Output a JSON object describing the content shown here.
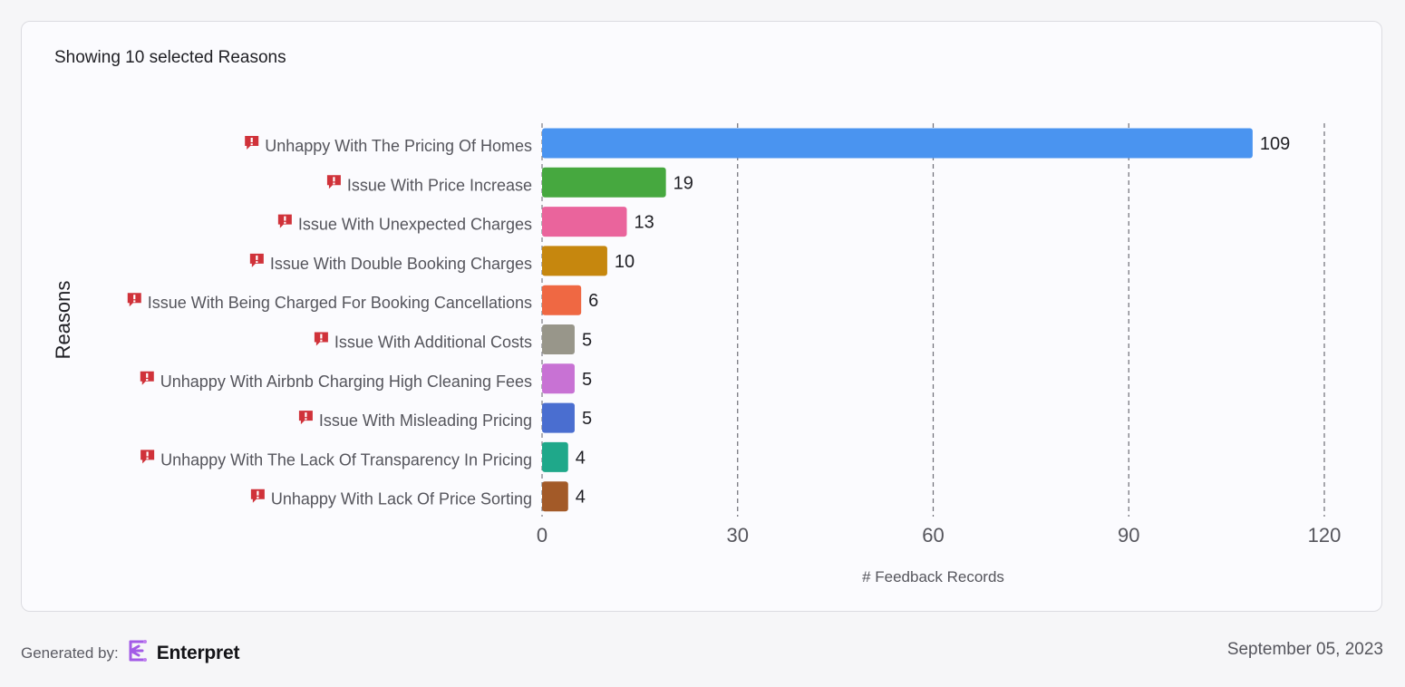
{
  "card": {
    "title": "Showing 10 selected Reasons"
  },
  "chart_data": {
    "type": "bar",
    "orientation": "horizontal",
    "ylabel": "Reasons",
    "xlabel": "# Feedback Records",
    "xlim": [
      0,
      120
    ],
    "xticks": [
      0,
      30,
      60,
      90,
      120
    ],
    "grid": "vertical-dashed",
    "categories": [
      "Unhappy With The Pricing Of Homes",
      "Issue With Price Increase",
      "Issue With Unexpected Charges",
      "Issue With Double Booking Charges",
      "Issue With Being Charged For Booking Cancellations",
      "Issue With Additional Costs",
      "Unhappy With Airbnb Charging High Cleaning Fees",
      "Issue With Misleading Pricing",
      "Unhappy With The Lack Of Transparency In Pricing",
      "Unhappy With Lack Of Price Sorting"
    ],
    "values": [
      109,
      19,
      13,
      10,
      6,
      5,
      5,
      5,
      4,
      4
    ],
    "colors": [
      "#4a94f0",
      "#46a83f",
      "#ea649c",
      "#c6870e",
      "#ef6843",
      "#98968a",
      "#c872d4",
      "#4a6ed0",
      "#1fa88a",
      "#a35a28"
    ],
    "category_icon": "alert-flag-icon",
    "category_icon_color": "#d0323a"
  },
  "footer": {
    "generated_label": "Generated by:",
    "brand_logo_icon": "enterpret-logo-icon",
    "brand_name": "Enterpret",
    "brand_color": "#a35be6",
    "date": "September 05, 2023"
  }
}
